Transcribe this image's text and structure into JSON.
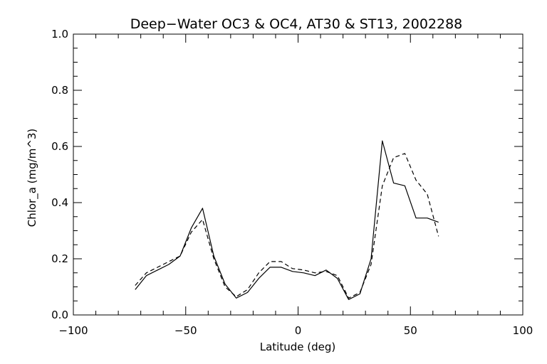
{
  "chart_data": {
    "type": "line",
    "title": "Deep−Water OC3 & OC4, AT30 & ST13, 2002288",
    "xlabel": "Latitude (deg)",
    "ylabel": "Chlor_a (mg/m^3)",
    "xlim": [
      -100,
      100
    ],
    "ylim": [
      0.0,
      1.0
    ],
    "x_ticks": [
      "−100",
      "−50",
      "0",
      "50",
      "100"
    ],
    "x_tick_values": [
      -100,
      -50,
      0,
      50,
      100
    ],
    "y_ticks": [
      "0.0",
      "0.2",
      "0.4",
      "0.6",
      "0.8",
      "1.0"
    ],
    "y_tick_values": [
      0.0,
      0.2,
      0.4,
      0.6,
      0.8,
      1.0
    ],
    "grid": false,
    "series": [
      {
        "style": "solid",
        "color": "#000000",
        "x": [
          -72.5,
          -67.5,
          -62.5,
          -57.5,
          -52.5,
          -47.5,
          -42.5,
          -37.5,
          -32.5,
          -27.5,
          -22.5,
          -17.5,
          -12.5,
          -7.5,
          -2.5,
          2.5,
          7.5,
          12.5,
          17.5,
          22.5,
          27.5,
          32.5,
          37.5,
          42.5,
          47.5,
          52.5,
          57.5,
          62.5
        ],
        "y": [
          0.09,
          0.14,
          0.16,
          0.18,
          0.21,
          0.31,
          0.38,
          0.21,
          0.11,
          0.06,
          0.08,
          0.13,
          0.17,
          0.17,
          0.155,
          0.15,
          0.14,
          0.16,
          0.13,
          0.055,
          0.075,
          0.2,
          0.62,
          0.47,
          0.46,
          0.345,
          0.345,
          0.33
        ]
      },
      {
        "style": "dashed",
        "color": "#000000",
        "x": [
          -72.5,
          -67.5,
          -62.5,
          -57.5,
          -52.5,
          -47.5,
          -42.5,
          -37.5,
          -32.5,
          -27.5,
          -22.5,
          -17.5,
          -12.5,
          -7.5,
          -2.5,
          2.5,
          7.5,
          12.5,
          17.5,
          22.5,
          27.5,
          32.5,
          37.5,
          42.5,
          47.5,
          52.5,
          57.5,
          62.5
        ],
        "y": [
          0.105,
          0.15,
          0.17,
          0.19,
          0.21,
          0.295,
          0.34,
          0.2,
          0.1,
          0.065,
          0.09,
          0.15,
          0.19,
          0.19,
          0.165,
          0.16,
          0.15,
          0.155,
          0.14,
          0.06,
          0.08,
          0.18,
          0.46,
          0.56,
          0.575,
          0.48,
          0.43,
          0.28
        ]
      }
    ]
  }
}
